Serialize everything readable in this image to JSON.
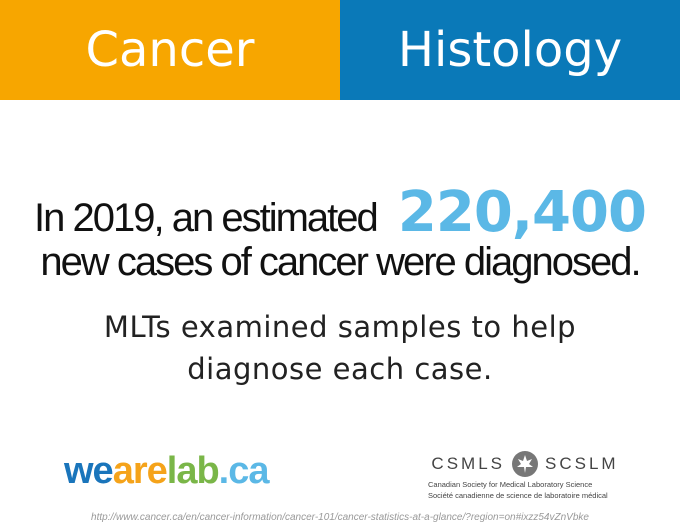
{
  "header": {
    "left": "Cancer",
    "right": "Histology"
  },
  "headline": {
    "line1": "In 2019, an estimated",
    "highlight": "220,400",
    "line2": "new cases of cancer were diagnosed."
  },
  "subtext": {
    "line1": "MLTs examined samples to help",
    "line2": "diagnose each case."
  },
  "logo": {
    "parts": [
      "we",
      "are",
      "lab",
      ".ca"
    ]
  },
  "partner": {
    "left": "CSMLS",
    "right": "SCSLM",
    "english": "Canadian Society for Medical Laboratory Science",
    "french": "Société canadienne de science de laboratoire médical"
  },
  "source": "http://www.cancer.ca/en/cancer-information/cancer-101/cancer-statistics-at-a-glance/?region=on#ixzz54vZnVbke"
}
